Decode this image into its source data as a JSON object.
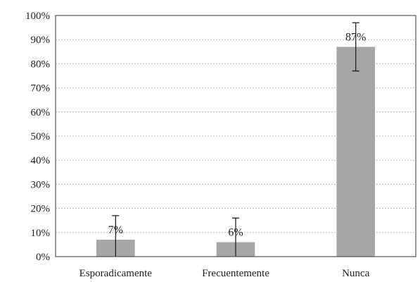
{
  "chart_data": {
    "type": "bar",
    "categories": [
      "Esporadicamente",
      "Frecuentemente",
      "Nunca"
    ],
    "values": [
      7,
      6,
      87
    ],
    "data_labels": [
      "7%",
      "6%",
      "87%"
    ],
    "error_bars": [
      [
        0,
        17
      ],
      [
        0,
        16
      ],
      [
        77,
        97
      ]
    ],
    "title": "",
    "xlabel": "",
    "ylabel": "",
    "ylim": [
      0,
      100
    ],
    "yticks": [
      "0%",
      "10%",
      "20%",
      "30%",
      "40%",
      "50%",
      "60%",
      "70%",
      "80%",
      "90%",
      "100%"
    ],
    "grid": true,
    "bar_color": "#a6a6a6",
    "legend": "none"
  }
}
